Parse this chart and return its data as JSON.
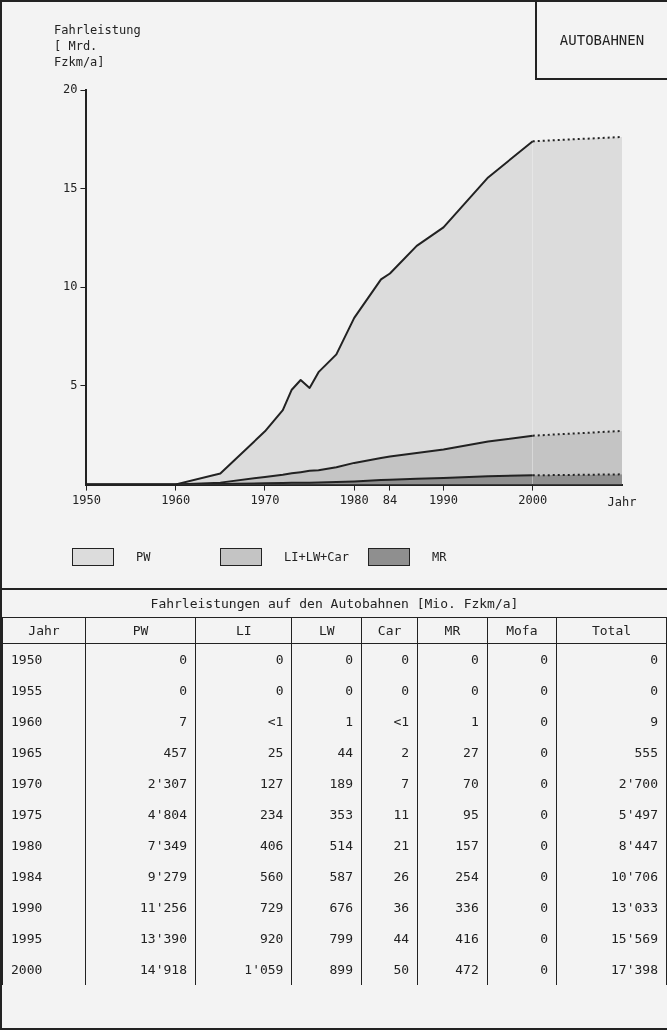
{
  "chart_data": [
    {
      "type": "area",
      "title": "AUTOBAHNEN",
      "ylabel": "Fahrleistung [ Mrd. Fzkm/a]",
      "xlabel": "Jahr",
      "stacked": true,
      "legend": "bottom",
      "grid": false,
      "xlim": [
        1950,
        2010
      ],
      "xticks": [
        1950,
        1960,
        1970,
        1980,
        {
          "value": 1984,
          "label": "84"
        },
        1990,
        2000
      ],
      "ylim": [
        0,
        20
      ],
      "yticks": [
        5,
        10,
        15,
        20
      ],
      "series": [
        {
          "name": "MR",
          "color": "#8f8f8f",
          "x": [
            1950,
            1955,
            1958,
            1960,
            1965,
            1970,
            1972,
            1973,
            1974,
            1975,
            1976,
            1978,
            1980,
            1983,
            1984,
            1987,
            1990,
            1995,
            2000
          ],
          "values": [
            0,
            0,
            0,
            0,
            0.03,
            0.07,
            0.08,
            0.09,
            0.09,
            0.1,
            0.11,
            0.13,
            0.16,
            0.23,
            0.25,
            0.3,
            0.34,
            0.42,
            0.47
          ]
        },
        {
          "name": "LI+LW+Car",
          "color": "#c4c4c4",
          "x": [
            1950,
            1955,
            1958,
            1960,
            1965,
            1970,
            1972,
            1973,
            1974,
            1975,
            1976,
            1978,
            1980,
            1983,
            1984,
            1987,
            1990,
            1995,
            2000
          ],
          "values": [
            0,
            0,
            0,
            0,
            0.07,
            0.32,
            0.42,
            0.48,
            0.54,
            0.6,
            0.62,
            0.75,
            0.94,
            1.12,
            1.17,
            1.3,
            1.44,
            1.76,
            2.01
          ]
        },
        {
          "name": "PW",
          "color": "#dcdcdc",
          "x": [
            1950,
            1955,
            1958,
            1960,
            1965,
            1970,
            1972,
            1973,
            1974,
            1975,
            1976,
            1978,
            1980,
            1983,
            1984,
            1987,
            1990,
            1995,
            2000
          ],
          "values": [
            0,
            0,
            0,
            0.01,
            0.46,
            2.31,
            3.27,
            4.24,
            4.67,
            4.2,
            4.97,
            5.72,
            7.35,
            9.05,
            9.28,
            10.5,
            11.26,
            13.39,
            14.92
          ]
        },
        {
          "color": "#8f8f8f",
          "line_style": "dotted",
          "x": [
            2000,
            2010
          ],
          "values": [
            0.47,
            0.52
          ]
        },
        {
          "color": "#c4c4c4",
          "line_style": "dotted",
          "x": [
            2000,
            2010
          ],
          "values": [
            2.01,
            2.2
          ]
        },
        {
          "color": "#dcdcdc",
          "line_style": "dotted",
          "x": [
            2000,
            2010
          ],
          "values": [
            14.92,
            14.9
          ]
        }
      ]
    },
    {
      "type": "heatmap",
      "title": "Fahrleistungen auf den Autobahnen  [Mio. Fzkm/a]",
      "ylabel": "Jahr",
      "categories": [
        "PW",
        "LI",
        "LW",
        "Car",
        "MR",
        "Mofa",
        "Total"
      ],
      "y_categories": [
        "1950",
        "1955",
        "1960",
        "1965",
        "1970",
        "1975",
        "1980",
        "1984",
        "1990",
        "1995",
        "2000"
      ],
      "cells": [
        [
          null,
          null,
          null,
          null,
          null,
          null,
          null
        ],
        [
          null,
          null,
          null,
          null,
          null,
          null,
          null
        ],
        [
          null,
          null,
          null,
          null,
          null,
          null,
          null
        ],
        [
          null,
          null,
          null,
          null,
          null,
          null,
          null
        ],
        [
          null,
          null,
          null,
          null,
          null,
          null,
          null
        ],
        [
          null,
          null,
          null,
          null,
          null,
          null,
          null
        ],
        [
          null,
          null,
          null,
          null,
          null,
          null,
          null
        ],
        [
          null,
          null,
          null,
          null,
          null,
          null,
          null
        ],
        [
          null,
          null,
          null,
          null,
          null,
          null,
          null
        ],
        [
          null,
          null,
          null,
          null,
          null,
          null,
          null
        ],
        [
          null,
          null,
          null,
          null,
          null,
          null,
          null
        ]
      ],
      "cell_labels": [
        [
          "0",
          "0",
          "0",
          "0",
          "0",
          "0",
          "0"
        ],
        [
          "0",
          "0",
          "0",
          "0",
          "0",
          "0",
          "0"
        ],
        [
          "7",
          "<1",
          "1",
          "<1",
          "1",
          "0",
          "9"
        ],
        [
          "457",
          "25",
          "44",
          "2",
          "27",
          "0",
          "555"
        ],
        [
          "2'307",
          "127",
          "189",
          "7",
          "70",
          "0",
          "2'700"
        ],
        [
          "4'804",
          "234",
          "353",
          "11",
          "95",
          "0",
          "5'497"
        ],
        [
          "7'349",
          "406",
          "514",
          "21",
          "157",
          "0",
          "8'447"
        ],
        [
          "9'279",
          "560",
          "587",
          "26",
          "254",
          "0",
          "10'706"
        ],
        [
          "11'256",
          "729",
          "676",
          "36",
          "336",
          "0",
          "13'033"
        ],
        [
          "13'390",
          "920",
          "799",
          "44",
          "416",
          "0",
          "15'569"
        ],
        [
          "14'918",
          "1'059",
          "899",
          "50",
          "472",
          "0",
          "17'398"
        ]
      ]
    }
  ]
}
